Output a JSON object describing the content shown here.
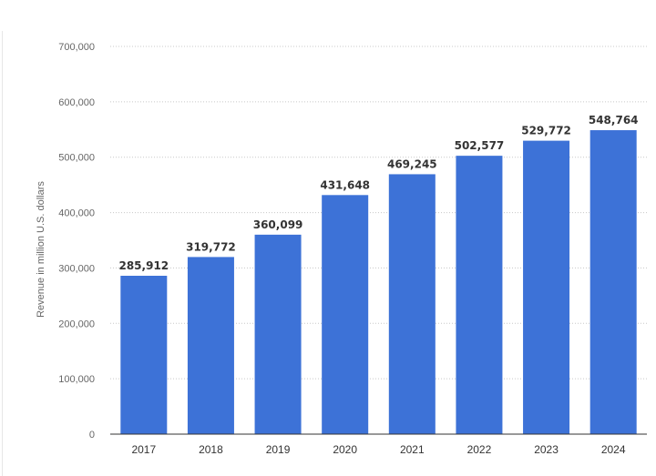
{
  "chart_data": {
    "type": "bar",
    "title": "",
    "xlabel": "",
    "ylabel": "Revenue in million U.S. dollars",
    "categories": [
      "2017",
      "2018",
      "2019",
      "2020",
      "2021",
      "2022",
      "2023",
      "2024"
    ],
    "values": [
      285912,
      319772,
      360099,
      431648,
      469245,
      502577,
      529772,
      548764
    ],
    "value_labels": [
      "285,912",
      "319,772",
      "360,099",
      "431,648",
      "469,245",
      "502,577",
      "529,772",
      "548,764"
    ],
    "ylim": [
      0,
      700000
    ],
    "yticks": [
      0,
      100000,
      200000,
      300000,
      400000,
      500000,
      600000,
      700000
    ],
    "ytick_labels": [
      "0",
      "100,000",
      "200,000",
      "300,000",
      "400,000",
      "500,000",
      "600,000",
      "700,000"
    ],
    "grid": true,
    "legend": "none",
    "bar_color": "#3d72d7"
  }
}
